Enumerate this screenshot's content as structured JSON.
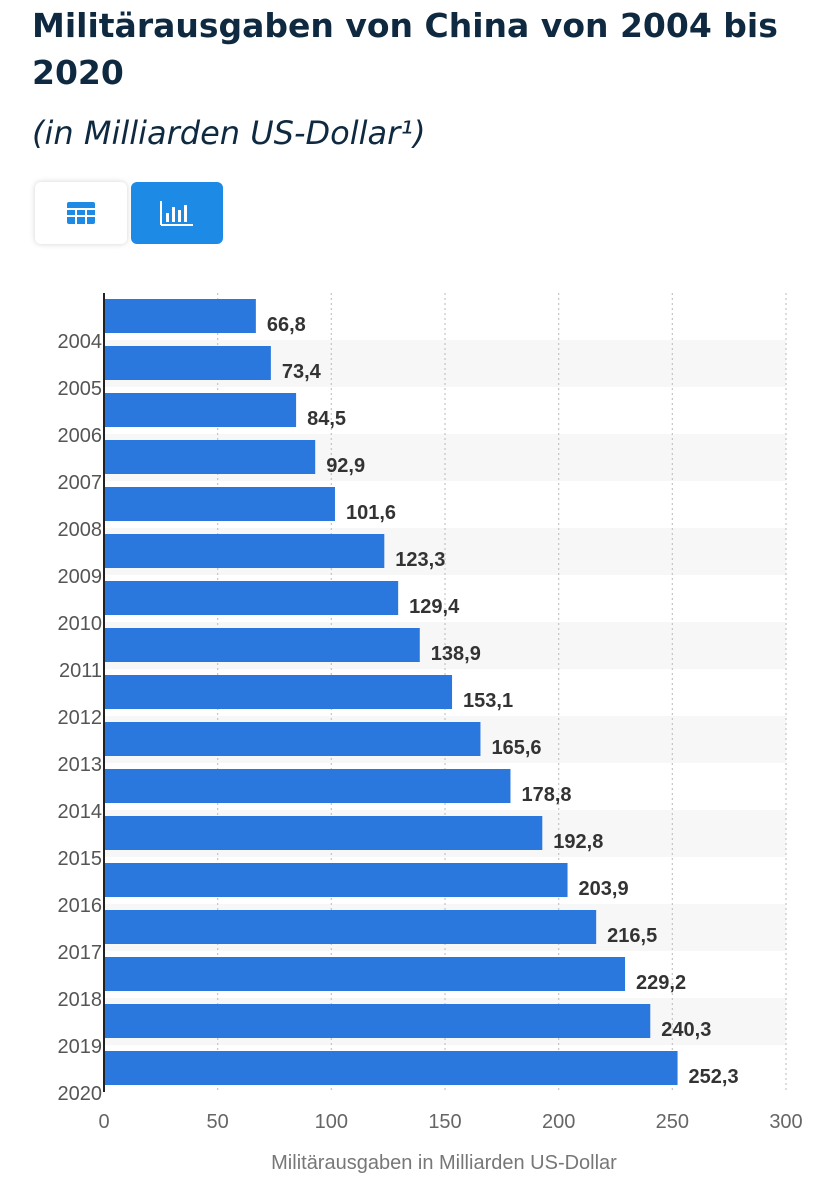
{
  "header": {
    "title": "Militärausgaben von China von 2004 bis 2020",
    "subtitle": "(in Milliarden US-Dollar¹)"
  },
  "view_toggle": {
    "table_icon": "table-icon",
    "chart_icon": "bar-chart-icon",
    "active": "chart"
  },
  "colors": {
    "bar": "#2a77dd",
    "title": "#0f2a40",
    "accent_button": "#1d8be6"
  },
  "chart_data": {
    "type": "bar",
    "orientation": "horizontal",
    "categories": [
      "2004",
      "2005",
      "2006",
      "2007",
      "2008",
      "2009",
      "2010",
      "2011",
      "2012",
      "2013",
      "2014",
      "2015",
      "2016",
      "2017",
      "2018",
      "2019",
      "2020"
    ],
    "values": [
      66.8,
      73.4,
      84.5,
      92.9,
      101.6,
      123.3,
      129.4,
      138.9,
      153.1,
      165.6,
      178.8,
      192.8,
      203.9,
      216.5,
      229.2,
      240.3,
      252.3
    ],
    "value_labels": [
      "66,8",
      "73,4",
      "84,5",
      "92,9",
      "101,6",
      "123,3",
      "129,4",
      "138,9",
      "153,1",
      "165,6",
      "178,8",
      "192,8",
      "203,9",
      "216,5",
      "229,2",
      "240,3",
      "252,3"
    ],
    "xlabel": "Militärausgaben in Milliarden US-Dollar",
    "ylabel": "",
    "xlim": [
      0,
      300
    ],
    "xticks": [
      0,
      50,
      100,
      150,
      200,
      250,
      300
    ],
    "xtick_labels": [
      "0",
      "50",
      "100",
      "150",
      "200",
      "250",
      "300"
    ],
    "grid": "vertical dotted",
    "legend": "none"
  }
}
